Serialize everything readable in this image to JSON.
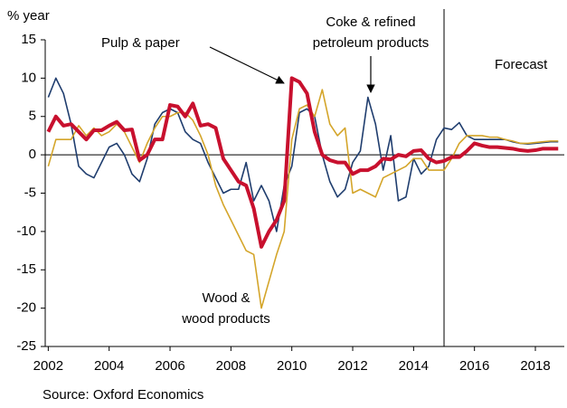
{
  "chart_data": {
    "type": "line",
    "y_label": "% year",
    "source": "Source: Oxford Economics",
    "forecast": {
      "label": "Forecast",
      "x": 2015
    },
    "x": [
      2002,
      2002.25,
      2002.5,
      2002.75,
      2003,
      2003.25,
      2003.5,
      2003.75,
      2004,
      2004.25,
      2004.5,
      2004.75,
      2005,
      2005.25,
      2005.5,
      2005.75,
      2006,
      2006.25,
      2006.5,
      2006.75,
      2007,
      2007.25,
      2007.5,
      2007.75,
      2008,
      2008.25,
      2008.5,
      2008.75,
      2009,
      2009.25,
      2009.5,
      2009.75,
      2010,
      2010.25,
      2010.5,
      2010.75,
      2011,
      2011.25,
      2011.5,
      2011.75,
      2012,
      2012.25,
      2012.5,
      2012.75,
      2013,
      2013.25,
      2013.5,
      2013.75,
      2014,
      2014.25,
      2014.5,
      2014.75,
      2015,
      2015.25,
      2015.5,
      2015.75,
      2016,
      2016.25,
      2016.5,
      2016.75,
      2017,
      2017.25,
      2017.5,
      2017.75,
      2018,
      2018.25,
      2018.5,
      2018.75
    ],
    "series": [
      {
        "name": "Pulp & paper",
        "color": "#c8102e",
        "width": 4,
        "values": [
          3,
          5,
          3.8,
          4,
          3,
          2,
          3.2,
          3.2,
          3.8,
          4.3,
          3.2,
          3.3,
          -0.7,
          0,
          2,
          2,
          6.5,
          6.3,
          5,
          6.7,
          3.8,
          4,
          3.5,
          -0.5,
          -2,
          -3.5,
          -4,
          -7,
          -12,
          -10,
          -8.5,
          -6,
          10,
          9.5,
          8,
          3,
          0,
          -0.7,
          -1,
          -1,
          -2.5,
          -2,
          -2,
          -1.5,
          -0.5,
          -0.6,
          0,
          -0.2,
          0.5,
          0.6,
          -0.5,
          -1,
          -0.8,
          -0.3,
          -0.3,
          0.5,
          1.5,
          1.2,
          1,
          1,
          0.9,
          0.8,
          0.6,
          0.5,
          0.6,
          0.8,
          0.8,
          0.8
        ]
      },
      {
        "name": [
          "Coke & refined",
          "petroleum products"
        ],
        "color": "#1f3d6e",
        "width": 1.6,
        "values": [
          7.5,
          10,
          8,
          4,
          -1.5,
          -2.5,
          -3,
          -1,
          1,
          1.5,
          0,
          -2.5,
          -3.5,
          -0.5,
          4,
          5.5,
          6,
          5.5,
          3,
          2,
          1.5,
          -1,
          -3,
          -5,
          -4.5,
          -4.5,
          -1,
          -6,
          -4,
          -6,
          -10,
          -4,
          -1.5,
          5.5,
          6,
          5,
          0,
          -3.5,
          -5.5,
          -4.5,
          -1,
          0.5,
          7.5,
          4,
          -2,
          2.5,
          -6,
          -5.5,
          -0.5,
          -2.5,
          -1.5,
          2,
          3.5,
          3.3,
          4.2,
          2.5,
          2,
          2,
          2,
          2,
          2,
          1.7,
          1.5,
          1.4,
          1.5,
          1.6,
          1.7,
          1.7
        ]
      },
      {
        "name": [
          "Wood &",
          "wood products"
        ],
        "color": "#d4a52a",
        "width": 1.6,
        "values": [
          -1.5,
          2,
          2,
          2,
          3.8,
          2.5,
          3.5,
          2.5,
          3,
          4,
          3,
          1,
          -1,
          1.5,
          3.5,
          5,
          5,
          5.5,
          5.5,
          4.5,
          2.5,
          0,
          -4,
          -6.5,
          -8.5,
          -10.5,
          -12.5,
          -13,
          -20,
          -16.5,
          -13,
          -10,
          2,
          6,
          6.5,
          5,
          8.5,
          4,
          2.5,
          3.5,
          -5,
          -4.5,
          -5,
          -5.5,
          -3,
          -2.5,
          -2,
          -1.5,
          -0.5,
          -0.5,
          -2,
          -2,
          -2,
          -0.5,
          1.5,
          2.5,
          2.5,
          2.5,
          2.3,
          2.3,
          2,
          1.8,
          1.5,
          1.5,
          1.6,
          1.7,
          1.8,
          1.8
        ]
      }
    ],
    "xlim": [
      2001.9,
      2018.95
    ],
    "xticks": [
      2002,
      2004,
      2006,
      2008,
      2010,
      2012,
      2014,
      2016,
      2018
    ],
    "ylim": [
      -25,
      15
    ],
    "yticks": [
      -25,
      -20,
      -15,
      -10,
      -5,
      0,
      5,
      10,
      15
    ],
    "grid": false
  }
}
